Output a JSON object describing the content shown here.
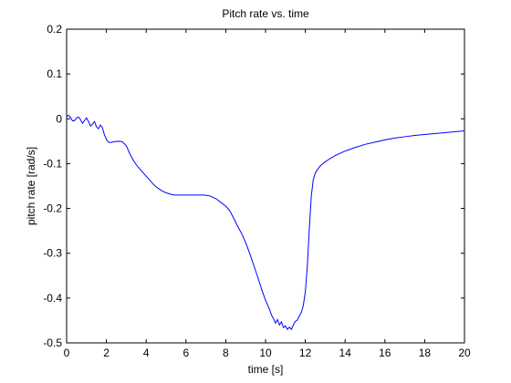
{
  "chart_data": {
    "type": "line",
    "title": "Pitch rate vs. time",
    "xlabel": "time [s]",
    "ylabel": "pitch rate [rad/s]",
    "xlim": [
      0,
      20
    ],
    "ylim": [
      -0.5,
      0.2
    ],
    "xticks": [
      0,
      2,
      4,
      6,
      8,
      10,
      12,
      14,
      16,
      18,
      20
    ],
    "yticks": [
      -0.5,
      -0.4,
      -0.3,
      -0.2,
      -0.1,
      0,
      0.1,
      0.2
    ],
    "xtick_labels": [
      "0",
      "2",
      "4",
      "6",
      "8",
      "10",
      "12",
      "14",
      "16",
      "18",
      "20"
    ],
    "ytick_labels": [
      "-0.5",
      "-0.4",
      "-0.3",
      "-0.2",
      "-0.1",
      "0",
      "0.1",
      "0.2"
    ],
    "grid": false,
    "line_color": "#0000ff",
    "series": [
      {
        "x": [
          0,
          0.1,
          0.2,
          0.3,
          0.4,
          0.5,
          0.6,
          0.7,
          0.8,
          0.9,
          1.0,
          1.1,
          1.2,
          1.3,
          1.4,
          1.5,
          1.6,
          1.7,
          1.8,
          1.9,
          2.0,
          2.1,
          2.2,
          2.4,
          2.6,
          2.8,
          3.0,
          3.2,
          3.4,
          3.6,
          3.8,
          4.0,
          4.2,
          4.4,
          4.6,
          4.8,
          5.0,
          5.2,
          5.4,
          5.6,
          5.8,
          6.0,
          6.3,
          6.6,
          6.9,
          7.2,
          7.5,
          7.8,
          8.0,
          8.2,
          8.4,
          8.6,
          8.8,
          9.0,
          9.2,
          9.4,
          9.6,
          9.8,
          10.0,
          10.2,
          10.3,
          10.4,
          10.5,
          10.6,
          10.7,
          10.8,
          10.9,
          11.0,
          11.1,
          11.2,
          11.3,
          11.4,
          11.5,
          11.6,
          11.7,
          11.8,
          11.9,
          12.0,
          12.1,
          12.2,
          12.3,
          12.4,
          12.5,
          12.6,
          12.7,
          12.8,
          13.0,
          13.2,
          13.5,
          14.0,
          14.5,
          15.0,
          15.5,
          16.0,
          16.5,
          17.0,
          17.5,
          18.0,
          18.5,
          19.0,
          19.5,
          20.0
        ],
        "y": [
          0.005,
          0.008,
          0.003,
          -0.005,
          -0.004,
          0.002,
          0.004,
          -0.002,
          -0.01,
          -0.004,
          0.002,
          -0.006,
          -0.016,
          -0.012,
          -0.006,
          -0.018,
          -0.022,
          -0.014,
          -0.02,
          -0.036,
          -0.046,
          -0.052,
          -0.053,
          -0.051,
          -0.05,
          -0.051,
          -0.06,
          -0.08,
          -0.096,
          -0.108,
          -0.118,
          -0.128,
          -0.138,
          -0.148,
          -0.155,
          -0.161,
          -0.165,
          -0.168,
          -0.17,
          -0.17,
          -0.17,
          -0.17,
          -0.17,
          -0.17,
          -0.17,
          -0.172,
          -0.178,
          -0.188,
          -0.195,
          -0.205,
          -0.222,
          -0.24,
          -0.256,
          -0.276,
          -0.3,
          -0.326,
          -0.352,
          -0.38,
          -0.405,
          -0.425,
          -0.438,
          -0.446,
          -0.456,
          -0.448,
          -0.46,
          -0.453,
          -0.466,
          -0.462,
          -0.47,
          -0.465,
          -0.47,
          -0.46,
          -0.452,
          -0.449,
          -0.44,
          -0.432,
          -0.416,
          -0.386,
          -0.33,
          -0.246,
          -0.172,
          -0.136,
          -0.121,
          -0.114,
          -0.108,
          -0.103,
          -0.096,
          -0.09,
          -0.082,
          -0.072,
          -0.064,
          -0.057,
          -0.052,
          -0.047,
          -0.043,
          -0.04,
          -0.037,
          -0.035,
          -0.033,
          -0.031,
          -0.029,
          -0.027
        ]
      }
    ]
  }
}
